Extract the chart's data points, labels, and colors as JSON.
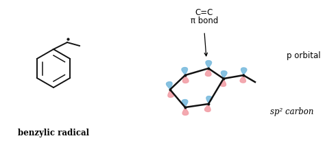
{
  "bg_color": "#ffffff",
  "text_color": "#000000",
  "label_benzylic": "benzylic radical",
  "label_cc": "C=C",
  "label_pi": "π bond",
  "label_p_orbital": "p orbital",
  "label_sp2": "sp² carbon",
  "blue_color": "#7bbcde",
  "pink_color": "#f2a0a8",
  "dot_color": "#111111",
  "line_color": "#111111"
}
